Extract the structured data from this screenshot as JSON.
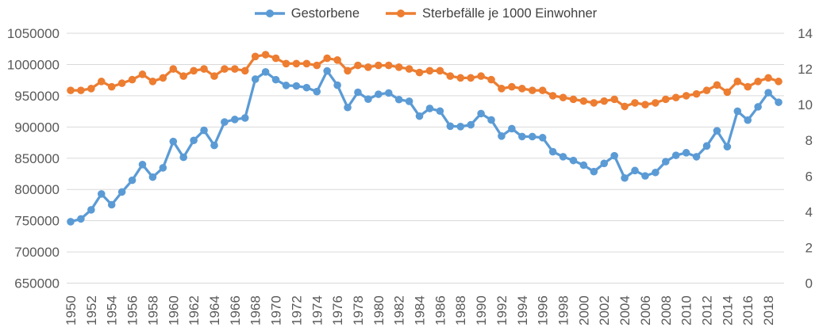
{
  "chart_data": {
    "type": "line",
    "title": "",
    "x": [
      1950,
      1951,
      1952,
      1953,
      1954,
      1955,
      1956,
      1957,
      1958,
      1959,
      1960,
      1961,
      1962,
      1963,
      1964,
      1965,
      1966,
      1967,
      1968,
      1969,
      1970,
      1971,
      1972,
      1973,
      1974,
      1975,
      1976,
      1977,
      1978,
      1979,
      1980,
      1981,
      1982,
      1983,
      1984,
      1985,
      1986,
      1987,
      1988,
      1989,
      1990,
      1991,
      1992,
      1993,
      1994,
      1995,
      1996,
      1997,
      1998,
      1999,
      2000,
      2001,
      2002,
      2003,
      2004,
      2005,
      2006,
      2007,
      2008,
      2009,
      2010,
      2011,
      2012,
      2013,
      2014,
      2015,
      2016,
      2017,
      2018,
      2019
    ],
    "x_tick_step": 2,
    "series": [
      {
        "name": "Gestorbene",
        "axis": "left",
        "color": "#5B9BD5",
        "values": [
          748329,
          752823,
          767335,
          792798,
          775524,
          795938,
          814646,
          839784,
          819684,
          834590,
          876721,
          851505,
          878501,
          894625,
          870518,
          907882,
          911984,
          914417,
          976521,
          988092,
          975664,
          966535,
          965689,
          962962,
          956573,
          989649,
          966873,
          931155,
          955550,
          944474,
          952371,
          954436,
          943832,
          941032,
          917299,
          929649,
          925426,
          901291,
          900627,
          903441,
          921445,
          911245,
          885443,
          897270,
          884661,
          884588,
          882843,
          860389,
          852382,
          846330,
          838797,
          828541,
          841686,
          853946,
          818271,
          830227,
          821627,
          827155,
          844439,
          854544,
          858768,
          852328,
          869582,
          893825,
          868356,
          925200,
          910899,
          932263,
          954874,
          939520
        ]
      },
      {
        "name": "Sterbefälle je 1000 Einwohner",
        "axis": "right",
        "color": "#ED7D31",
        "values": [
          10.8,
          10.8,
          10.9,
          11.3,
          11.0,
          11.2,
          11.4,
          11.7,
          11.3,
          11.5,
          12.0,
          11.6,
          11.9,
          12.0,
          11.6,
          12.0,
          12.0,
          11.9,
          12.7,
          12.8,
          12.6,
          12.3,
          12.3,
          12.3,
          12.2,
          12.6,
          12.5,
          11.9,
          12.2,
          12.1,
          12.2,
          12.2,
          12.1,
          12.0,
          11.8,
          11.9,
          11.9,
          11.6,
          11.5,
          11.5,
          11.6,
          11.4,
          10.9,
          11.0,
          10.9,
          10.8,
          10.8,
          10.5,
          10.4,
          10.3,
          10.2,
          10.1,
          10.2,
          10.3,
          9.9,
          10.1,
          10.0,
          10.1,
          10.3,
          10.4,
          10.5,
          10.6,
          10.8,
          11.1,
          10.7,
          11.3,
          11.0,
          11.3,
          11.5,
          11.3
        ]
      }
    ],
    "left_axis": {
      "min": 650000,
      "max": 1050000,
      "step": 50000,
      "tick_labels": [
        "650000",
        "700000",
        "750000",
        "800000",
        "850000",
        "900000",
        "950000",
        "1000000",
        "1050000"
      ]
    },
    "right_axis": {
      "min": 0,
      "max": 14,
      "step": 2,
      "tick_labels": [
        "0",
        "2",
        "4",
        "6",
        "8",
        "10",
        "12",
        "14"
      ]
    },
    "x_tick_labels": [
      "1950",
      "1952",
      "1954",
      "1956",
      "1958",
      "1960",
      "1962",
      "1964",
      "1966",
      "1968",
      "1970",
      "1972",
      "1974",
      "1976",
      "1978",
      "1980",
      "1982",
      "1984",
      "1986",
      "1988",
      "1990",
      "1992",
      "1994",
      "1996",
      "1998",
      "2000",
      "2002",
      "2004",
      "2006",
      "2008",
      "2010",
      "2012",
      "2014",
      "2016",
      "2018"
    ],
    "grid": true,
    "legend_position": "top"
  },
  "legend": {
    "items": [
      {
        "label": "Gestorbene",
        "color": "#5B9BD5"
      },
      {
        "label": "Sterbefälle je 1000 Einwohner",
        "color": "#ED7D31"
      }
    ]
  },
  "styles": {
    "background": "#FFFFFF",
    "grid_color": "#D9D9D9",
    "axis_text_color": "#595959",
    "legend_text_color": "#404040"
  }
}
